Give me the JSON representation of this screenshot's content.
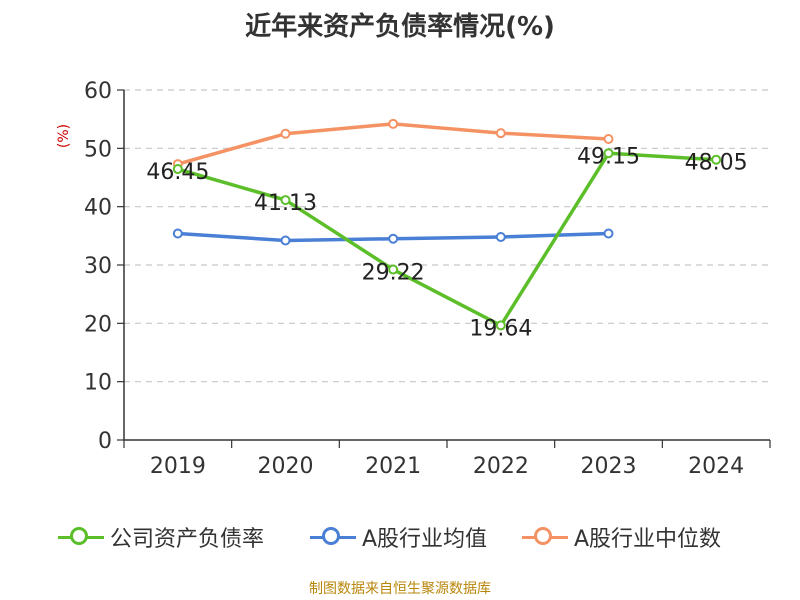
{
  "title": "近年来资产负债率情况(%)",
  "source": "制图数据来自恒生聚源数据库",
  "chart_data": {
    "type": "line",
    "title": "近年来资产负债率情况(%)",
    "ylabel": "(%)",
    "xlabel": "",
    "categories": [
      "2019",
      "2020",
      "2021",
      "2022",
      "2023",
      "2024"
    ],
    "ylim": [
      0,
      60
    ],
    "yticks": [
      0,
      10,
      20,
      30,
      40,
      50,
      60
    ],
    "grid": true,
    "legend_position": "bottom",
    "series": [
      {
        "name": "公司资产负债率",
        "color": "#5cbf2a",
        "values": [
          46.45,
          41.13,
          29.22,
          19.64,
          49.15,
          48.05
        ],
        "labels": [
          "46.45",
          "41.13",
          "29.22",
          "19.64",
          "49.15",
          "48.05"
        ]
      },
      {
        "name": "A股行业均值",
        "color": "#4a7fd6",
        "values": [
          35.4,
          34.2,
          34.5,
          34.8,
          35.4,
          null
        ],
        "labels": []
      },
      {
        "name": "A股行业中位数",
        "color": "#f59264",
        "values": [
          47.3,
          52.5,
          54.2,
          52.6,
          51.6,
          null
        ],
        "labels": []
      }
    ]
  }
}
